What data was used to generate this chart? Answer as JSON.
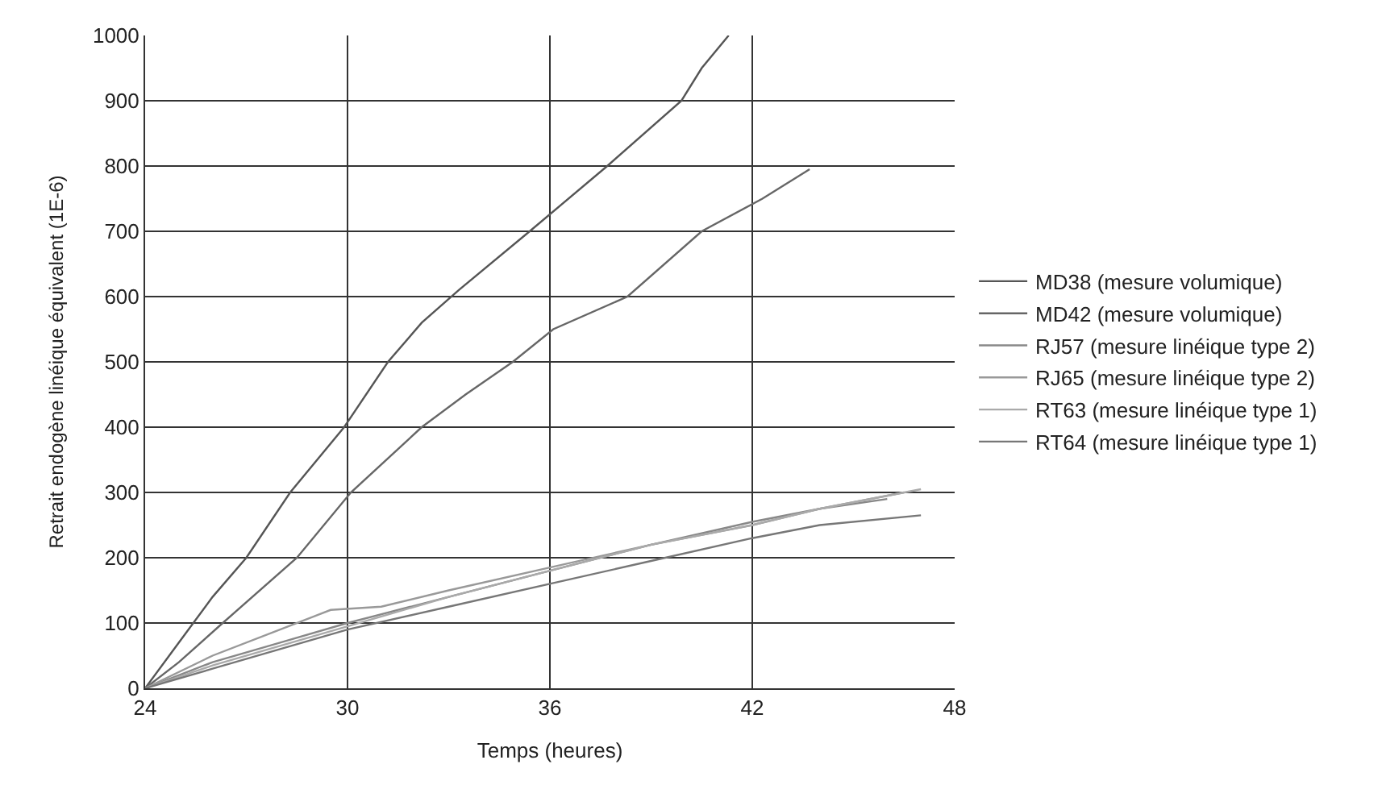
{
  "chart_data": {
    "type": "line",
    "xlabel": "Temps (heures)",
    "ylabel": "Retrait endogène linéique équivalent (1E-6)",
    "xlim": [
      24,
      48
    ],
    "xticks": [
      24,
      30,
      36,
      42,
      48
    ],
    "ylim": [
      0,
      1000
    ],
    "yticks": [
      0,
      100,
      200,
      300,
      400,
      500,
      600,
      700,
      800,
      900,
      1000
    ],
    "grid": true,
    "legend": "right",
    "marker": "none",
    "line_style": "solid",
    "series": [
      {
        "name": "MD38 (mesure volumique)",
        "color": "#555555",
        "x": [
          24,
          25,
          26,
          27,
          28.3,
          29.9,
          31.2,
          32.2,
          33.3,
          35.4,
          37.7,
          39.9,
          40.5,
          41.3
        ],
        "values": [
          0,
          70,
          140,
          200,
          300,
          400,
          500,
          560,
          610,
          700,
          800,
          900,
          950,
          1000
        ]
      },
      {
        "name": "MD42 (mesure volumique)",
        "color": "#666666",
        "x": [
          24,
          25,
          26.3,
          28.5,
          30.1,
          32.2,
          33.5,
          34.9,
          36.1,
          38.3,
          40.5,
          42.3,
          43.7
        ],
        "values": [
          0,
          40,
          100,
          200,
          300,
          400,
          450,
          500,
          550,
          600,
          700,
          750,
          795
        ]
      },
      {
        "name": "RJ57 (mesure linéique type 2)",
        "color": "#888888",
        "x": [
          24,
          26,
          28,
          30,
          33,
          36,
          39,
          42,
          44,
          46
        ],
        "values": [
          0,
          40,
          70,
          100,
          140,
          180,
          220,
          255,
          275,
          290
        ]
      },
      {
        "name": "RJ65 (mesure linéique type 2)",
        "color": "#999999",
        "x": [
          24,
          26,
          28,
          29.5,
          31,
          33,
          36,
          39,
          42,
          44,
          46.5
        ],
        "values": [
          0,
          50,
          90,
          120,
          125,
          150,
          185,
          220,
          250,
          275,
          300
        ]
      },
      {
        "name": "RT63 (mesure linéique type 1)",
        "color": "#aaaaaa",
        "x": [
          24,
          26,
          28,
          30,
          33,
          36,
          39,
          42,
          44,
          47
        ],
        "values": [
          0,
          35,
          65,
          95,
          140,
          180,
          220,
          250,
          275,
          305
        ]
      },
      {
        "name": "RT64 (mesure linéique type 1)",
        "color": "#777777",
        "x": [
          24,
          26,
          28,
          30,
          33,
          36,
          39,
          42,
          44,
          47
        ],
        "values": [
          0,
          30,
          60,
          90,
          125,
          160,
          195,
          230,
          250,
          265
        ]
      }
    ]
  }
}
